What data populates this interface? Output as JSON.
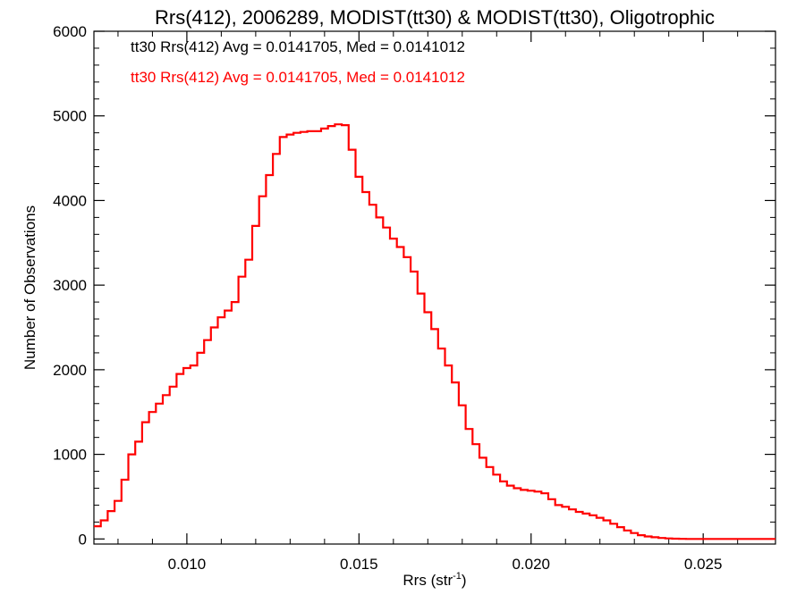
{
  "chart_data": {
    "type": "line",
    "style": "step-histogram",
    "title": "Rrs(412), 2006289, MODIST(tt30) & MODIST(tt30), Oligotrophic",
    "xlabel_main": "Rrs (str",
    "xlabel_sup": "-1",
    "xlabel_end": ")",
    "ylabel": "Number of Observations",
    "xlim": [
      0.0073,
      0.0271
    ],
    "ylim": [
      -60,
      6000
    ],
    "xticks": [
      0.01,
      0.015,
      0.02,
      0.025
    ],
    "xtick_labels": [
      "0.010",
      "0.015",
      "0.020",
      "0.025"
    ],
    "yticks": [
      0,
      1000,
      2000,
      3000,
      4000,
      5000,
      6000
    ],
    "ytick_labels": [
      "0",
      "1000",
      "2000",
      "3000",
      "4000",
      "5000",
      "6000"
    ],
    "grid": false,
    "legend_position": "top-left",
    "legend": [
      {
        "text": "tt30 Rrs(412) Avg = 0.0141705, Med = 0.0141012",
        "color": "#000000"
      },
      {
        "text": "tt30 Rrs(412) Avg = 0.0141705, Med = 0.0141012",
        "color": "#ff0000"
      }
    ],
    "series": [
      {
        "color": "#ff0000",
        "x": [
          0.0073,
          0.0075,
          0.0077,
          0.0079,
          0.0081,
          0.0083,
          0.0085,
          0.0087,
          0.0089,
          0.0091,
          0.0093,
          0.0095,
          0.0097,
          0.0099,
          0.0101,
          0.0103,
          0.0105,
          0.0107,
          0.0109,
          0.0111,
          0.0113,
          0.0115,
          0.0117,
          0.0119,
          0.0121,
          0.0123,
          0.0125,
          0.0127,
          0.0129,
          0.0131,
          0.0133,
          0.0135,
          0.0137,
          0.0139,
          0.0141,
          0.0143,
          0.0145,
          0.0147,
          0.0149,
          0.0151,
          0.0153,
          0.0155,
          0.0157,
          0.0159,
          0.0161,
          0.0163,
          0.0165,
          0.0167,
          0.0169,
          0.0171,
          0.0173,
          0.0175,
          0.0177,
          0.0179,
          0.0181,
          0.0183,
          0.0185,
          0.0187,
          0.0189,
          0.0191,
          0.0193,
          0.0195,
          0.0197,
          0.0199,
          0.0201,
          0.0203,
          0.0205,
          0.0207,
          0.0209,
          0.0211,
          0.0213,
          0.0215,
          0.0217,
          0.0219,
          0.0221,
          0.0223,
          0.0225,
          0.0227,
          0.0229,
          0.0231,
          0.0233,
          0.0235,
          0.0237,
          0.0239,
          0.0241,
          0.0243,
          0.0245,
          0.0247,
          0.0249,
          0.0251,
          0.0253,
          0.0255,
          0.0257,
          0.0259,
          0.0261,
          0.0263,
          0.0265,
          0.0267,
          0.0269,
          0.0271
        ],
        "y": [
          150,
          220,
          330,
          450,
          700,
          1000,
          1150,
          1380,
          1500,
          1600,
          1700,
          1800,
          1950,
          2020,
          2050,
          2200,
          2350,
          2500,
          2620,
          2700,
          2800,
          3100,
          3300,
          3700,
          4050,
          4300,
          4550,
          4750,
          4780,
          4800,
          4810,
          4820,
          4820,
          4850,
          4880,
          4900,
          4890,
          4600,
          4280,
          4100,
          3950,
          3800,
          3680,
          3550,
          3450,
          3330,
          3160,
          2900,
          2680,
          2480,
          2250,
          2050,
          1850,
          1580,
          1300,
          1120,
          960,
          850,
          760,
          680,
          630,
          600,
          580,
          570,
          560,
          540,
          470,
          400,
          380,
          350,
          320,
          300,
          280,
          250,
          220,
          180,
          140,
          100,
          70,
          45,
          30,
          20,
          12,
          6,
          3,
          1,
          0,
          0,
          0,
          0,
          0,
          0,
          0,
          0,
          0,
          0,
          0,
          0,
          0,
          0
        ]
      }
    ]
  }
}
